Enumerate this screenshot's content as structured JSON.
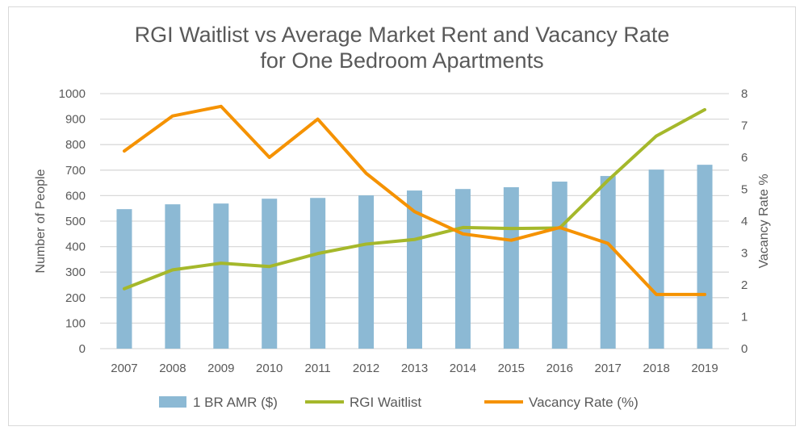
{
  "chart_data": {
    "type": "bar+line",
    "title_lines": [
      "RGI Waitlist vs Average Market Rent and Vacancy Rate",
      "for One Bedroom Apartments"
    ],
    "ylabel": "Number of People",
    "y2label": "Vacancy Rate %",
    "ylim": [
      0,
      1000
    ],
    "y2lim": [
      0,
      8
    ],
    "yticks": [
      0,
      100,
      200,
      300,
      400,
      500,
      600,
      700,
      800,
      900,
      1000
    ],
    "y2ticks": [
      0,
      1,
      2,
      3,
      4,
      5,
      6,
      7,
      8
    ],
    "categories": [
      "2007",
      "2008",
      "2009",
      "2010",
      "2011",
      "2012",
      "2013",
      "2014",
      "2015",
      "2016",
      "2017",
      "2018",
      "2019"
    ],
    "series": [
      {
        "name": "1 BR AMR ($)",
        "kind": "bar",
        "axis": "left",
        "color": "#8cb9d4",
        "values": [
          547,
          566,
          569,
          588,
          591,
          601,
          620,
          626,
          633,
          655,
          677,
          702,
          721
        ]
      },
      {
        "name": "RGI Waitlist",
        "kind": "line",
        "axis": "left",
        "color": "#a5b82b",
        "values": [
          235,
          309,
          335,
          322,
          373,
          410,
          428,
          475,
          471,
          473,
          660,
          834,
          937
        ]
      },
      {
        "name": "Vacancy Rate (%)",
        "kind": "line",
        "axis": "right",
        "color": "#f59200",
        "values": [
          6.2,
          7.3,
          7.6,
          6.0,
          7.2,
          5.5,
          4.3,
          3.6,
          3.4,
          3.8,
          3.3,
          1.7,
          1.7
        ]
      }
    ],
    "grid": true,
    "legend_position": "bottom"
  }
}
